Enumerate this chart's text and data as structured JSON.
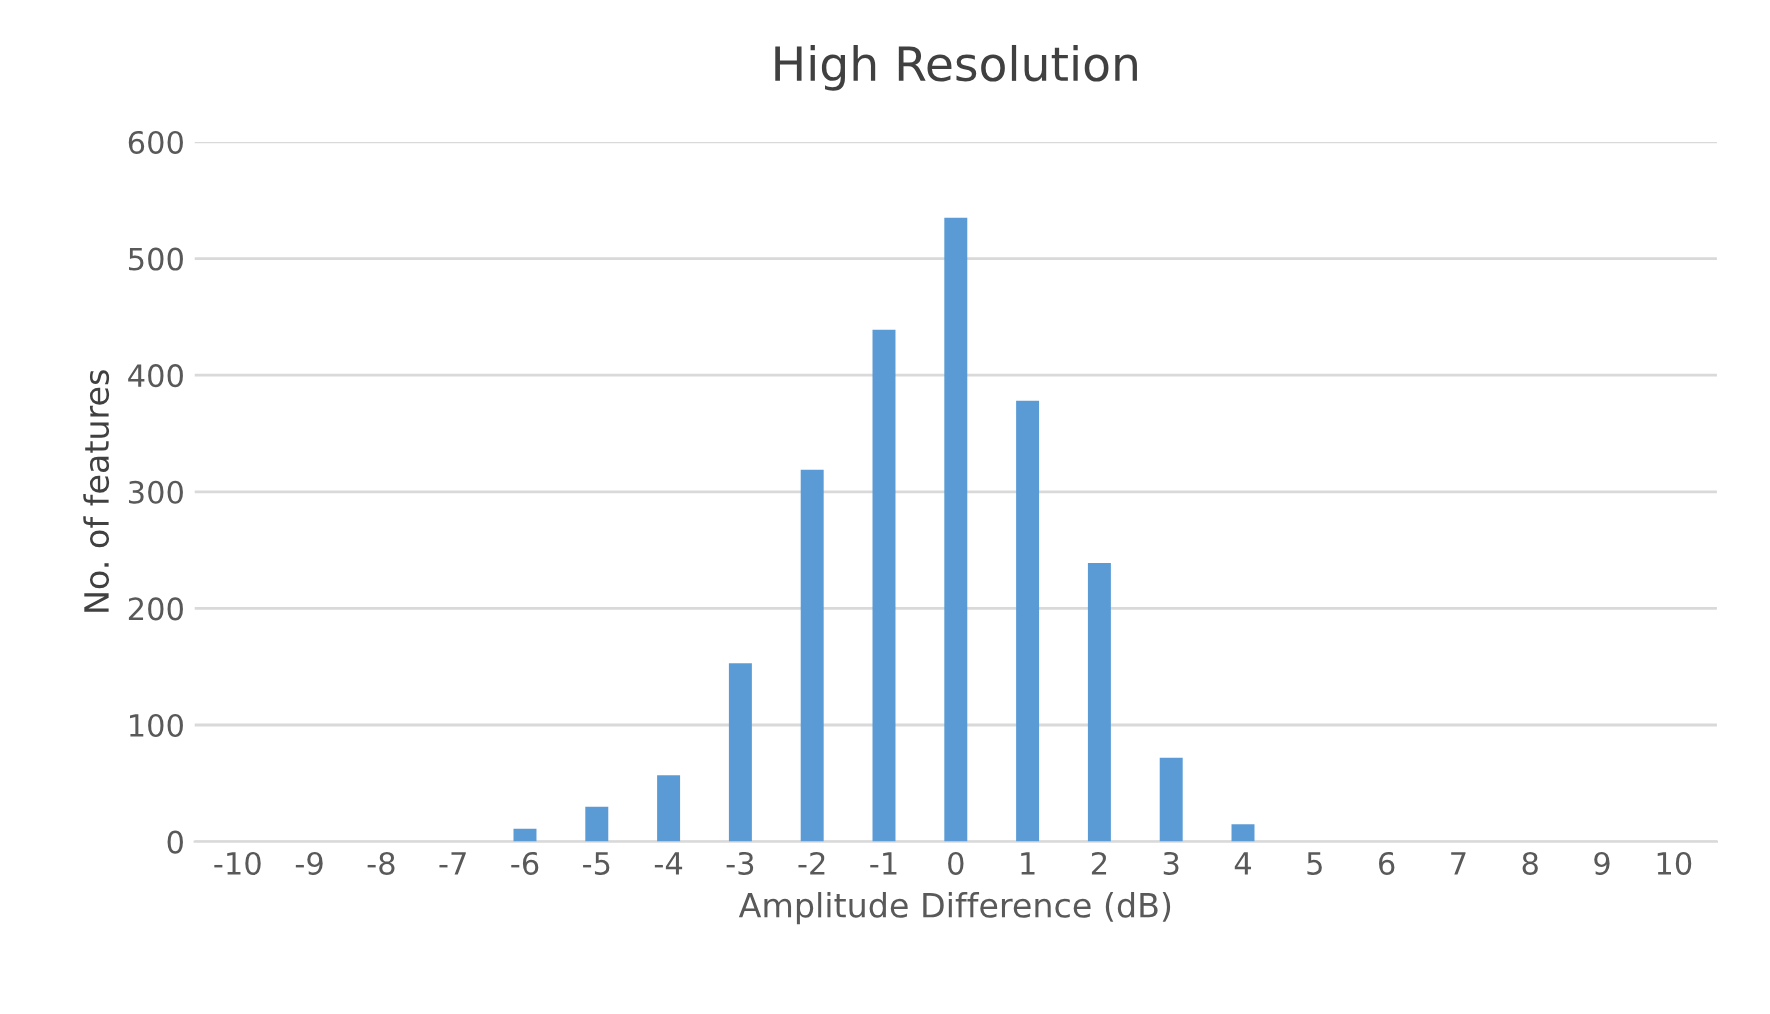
{
  "chart_data": {
    "type": "bar",
    "title": "High Resolution",
    "xlabel": "Amplitude Difference (dB)",
    "ylabel": "No. of features",
    "categories": [
      "-10",
      "-9",
      "-8",
      "-7",
      "-6",
      "-5",
      "-4",
      "-3",
      "-2",
      "-1",
      "0",
      "1",
      "2",
      "3",
      "4",
      "5",
      "6",
      "7",
      "8",
      "9",
      "10"
    ],
    "values": [
      0,
      0,
      0,
      0,
      11,
      30,
      57,
      153,
      319,
      439,
      535,
      378,
      239,
      72,
      15,
      0,
      0,
      0,
      0,
      0,
      0
    ],
    "color": "#5b9bd5",
    "ylim": [
      0,
      600
    ],
    "yticks": [
      0,
      100,
      200,
      300,
      400,
      500,
      600
    ],
    "grid": "y"
  }
}
